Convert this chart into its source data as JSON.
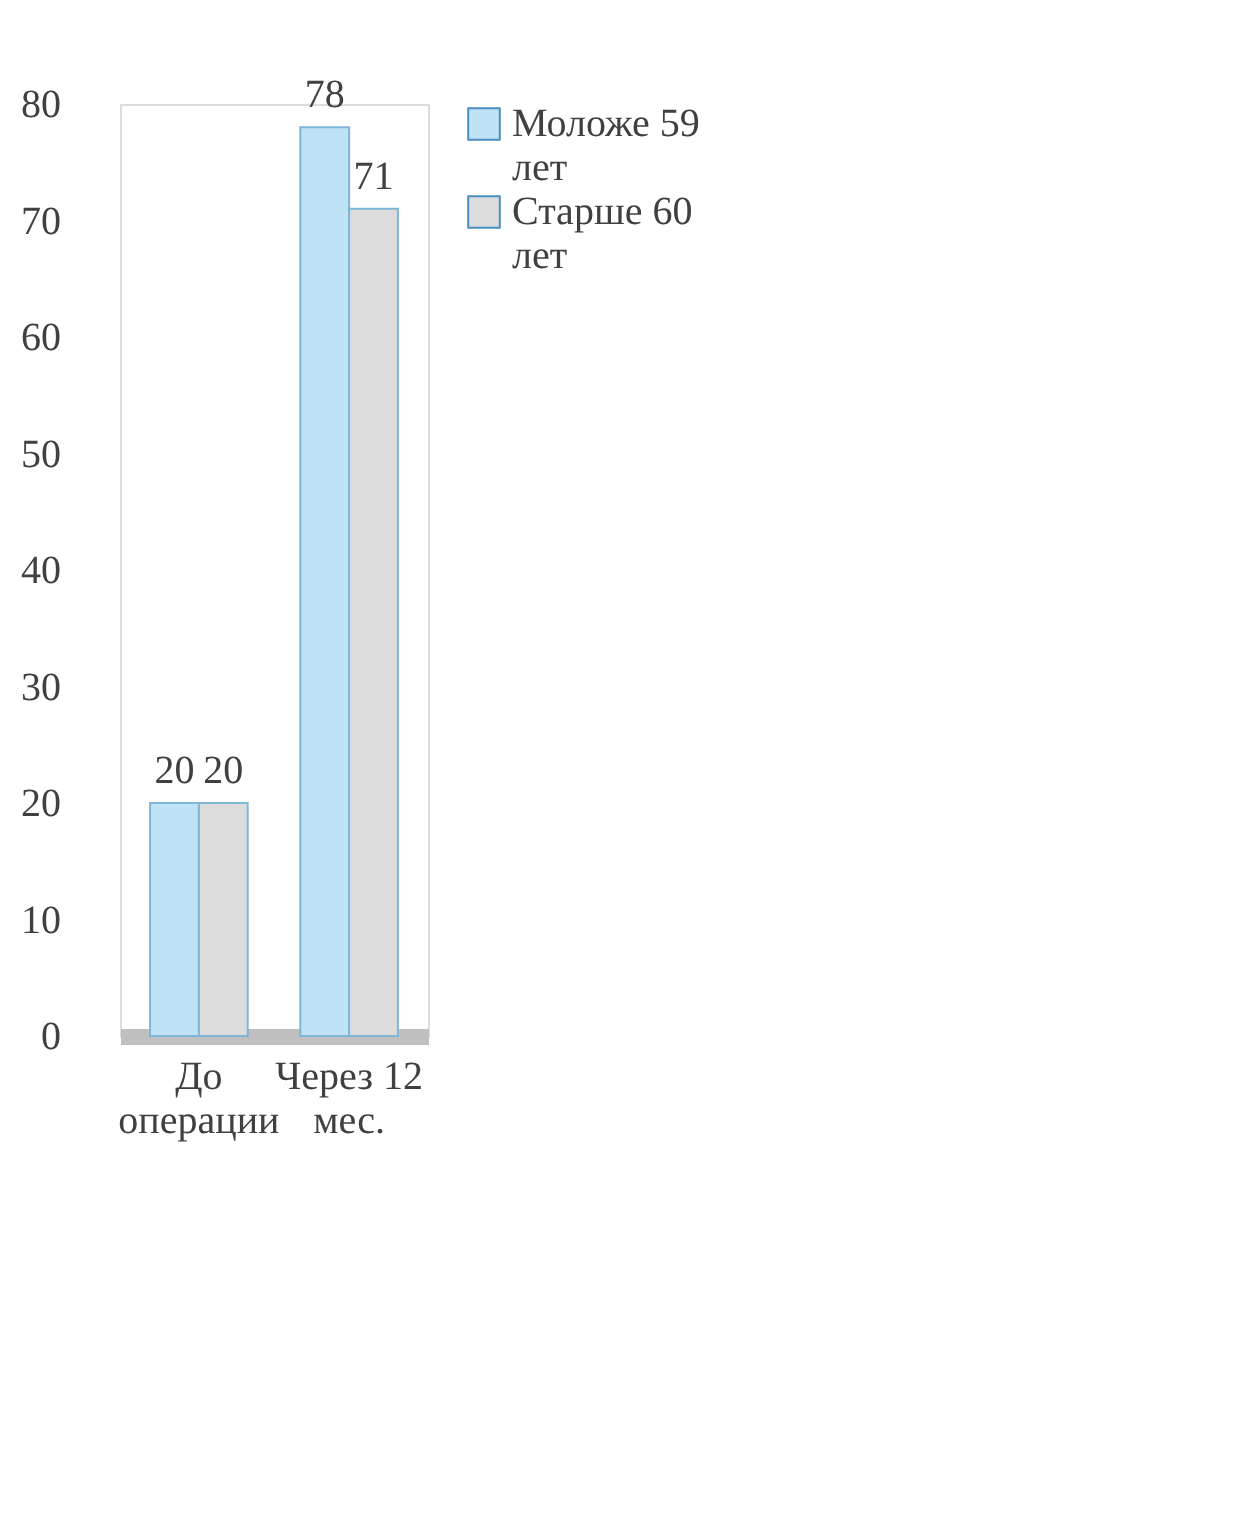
{
  "chart_data": {
    "type": "bar",
    "categories": [
      "До операции",
      "Через 12 мес."
    ],
    "series": [
      {
        "name": "Моложе 59 лет",
        "color": "#bfe2f4",
        "values": [
          20,
          78
        ]
      },
      {
        "name": "Старше 60 лет",
        "color": "#dcdcdc",
        "values": [
          20,
          71
        ]
      }
    ],
    "ylim": [
      0,
      80
    ],
    "yticks": [
      0,
      10,
      20,
      30,
      40,
      50,
      60,
      70,
      80
    ],
    "grid": false,
    "legend": "right",
    "data_labels": true
  }
}
